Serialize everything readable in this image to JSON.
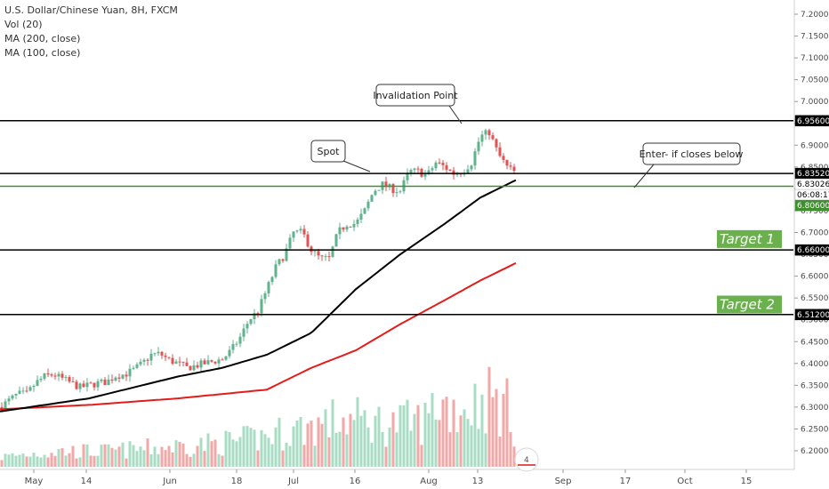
{
  "header": {
    "symbol_line": "U.S. Dollar/Chinese Yuan, 8H, FXCM",
    "indicators": [
      "Vol (20)",
      "MA (200, close)",
      "MA (100, close)"
    ]
  },
  "colors": {
    "up": "#5fb38c",
    "down": "#e35252",
    "vol_up": "#a9dcc4",
    "vol_down": "#f4a7a7",
    "ma200": "#e31c1c",
    "ma100": "#000000",
    "green_line": "#3f8f2e",
    "target_box": "#6ab04c"
  },
  "chart_data": {
    "type": "candlestick",
    "title": "U.S. Dollar/Chinese Yuan, 8H, FXCM",
    "y_axis": {
      "ylim": [
        6.18,
        7.22
      ],
      "ticks": [
        "7.20000",
        "7.15000",
        "7.10000",
        "7.05000",
        "7.00000",
        "6.95000",
        "6.90000",
        "6.85000",
        "6.80000",
        "6.75000",
        "6.70000",
        "6.65000",
        "6.60000",
        "6.55000",
        "6.50000",
        "6.45000",
        "6.40000",
        "6.35000",
        "6.30000",
        "6.25000",
        "6.20000"
      ]
    },
    "x_axis": {
      "ticks": [
        "May",
        "14",
        "Jun",
        "18",
        "Jul",
        "16",
        "Aug",
        "13",
        "Sep",
        "17",
        "Oct",
        "15"
      ]
    },
    "horizontal_lines": [
      {
        "name": "invalidation",
        "value": 6.956,
        "label": "6.95600",
        "color": "#000000"
      },
      {
        "name": "spot",
        "value": 6.8352,
        "label": "6.83520",
        "color": "#000000"
      },
      {
        "name": "entry",
        "value": 6.806,
        "label": "6.80600",
        "color": "#3f8f2e"
      },
      {
        "name": "target-1",
        "value": 6.66,
        "label": "6.66000",
        "color": "#000000"
      },
      {
        "name": "target-2",
        "value": 6.512,
        "label": "6.51200",
        "color": "#000000"
      }
    ],
    "price_tags": [
      {
        "label": "6.95600",
        "value": 6.956,
        "bg": "#000000",
        "fg": "#ffffff"
      },
      {
        "label": "6.83520",
        "value": 6.8352,
        "bg": "#000000",
        "fg": "#ffffff"
      },
      {
        "label": "6.83026",
        "value": 6.83026,
        "bg": "#ffffff",
        "fg": "#000000"
      },
      {
        "label": "06:08:17",
        "value": 6.818,
        "bg": "#ffffff",
        "fg": "#000000"
      },
      {
        "label": "6.80600",
        "value": 6.806,
        "bg": "#3f8f2e",
        "fg": "#ffffff"
      },
      {
        "label": "6.66000",
        "value": 6.66,
        "bg": "#000000",
        "fg": "#ffffff"
      },
      {
        "label": "6.51200",
        "value": 6.512,
        "bg": "#000000",
        "fg": "#ffffff"
      }
    ],
    "annotations": [
      {
        "text": "Invalidation Point"
      },
      {
        "text": "Spot"
      },
      {
        "text": "Enter- if closes below"
      }
    ],
    "targets": [
      {
        "text": "Target 1",
        "value": 6.685
      },
      {
        "text": "Target 2",
        "value": 6.535
      }
    ],
    "price_path": [
      [
        0,
        6.3
      ],
      [
        10,
        6.315
      ],
      [
        20,
        6.33
      ],
      [
        30,
        6.33
      ],
      [
        40,
        6.355
      ],
      [
        50,
        6.37
      ],
      [
        60,
        6.375
      ],
      [
        70,
        6.365
      ],
      [
        80,
        6.355
      ],
      [
        90,
        6.345
      ],
      [
        100,
        6.35
      ],
      [
        110,
        6.355
      ],
      [
        120,
        6.358
      ],
      [
        130,
        6.372
      ],
      [
        140,
        6.375
      ],
      [
        150,
        6.385
      ],
      [
        160,
        6.4
      ],
      [
        170,
        6.42
      ],
      [
        180,
        6.422
      ],
      [
        190,
        6.408
      ],
      [
        200,
        6.4
      ],
      [
        210,
        6.39
      ],
      [
        220,
        6.395
      ],
      [
        230,
        6.4
      ],
      [
        240,
        6.405
      ],
      [
        250,
        6.41
      ],
      [
        260,
        6.43
      ],
      [
        270,
        6.46
      ],
      [
        280,
        6.5
      ],
      [
        290,
        6.52
      ],
      [
        300,
        6.57
      ],
      [
        310,
        6.62
      ],
      [
        320,
        6.65
      ],
      [
        330,
        6.7
      ],
      [
        340,
        6.7
      ],
      [
        350,
        6.66
      ],
      [
        360,
        6.64
      ],
      [
        370,
        6.64
      ],
      [
        380,
        6.7
      ],
      [
        390,
        6.72
      ],
      [
        400,
        6.72
      ],
      [
        410,
        6.75
      ],
      [
        420,
        6.795
      ],
      [
        430,
        6.81
      ],
      [
        440,
        6.8
      ],
      [
        450,
        6.795
      ],
      [
        460,
        6.84
      ],
      [
        470,
        6.84
      ],
      [
        480,
        6.83
      ],
      [
        490,
        6.86
      ],
      [
        500,
        6.85
      ],
      [
        510,
        6.835
      ],
      [
        520,
        6.84
      ],
      [
        530,
        6.86
      ],
      [
        540,
        6.92
      ],
      [
        550,
        6.93
      ],
      [
        560,
        6.88
      ],
      [
        570,
        6.85
      ],
      [
        580,
        6.836
      ]
    ],
    "ma100_path": [
      [
        0,
        6.29
      ],
      [
        100,
        6.32
      ],
      [
        200,
        6.37
      ],
      [
        250,
        6.39
      ],
      [
        300,
        6.42
      ],
      [
        350,
        6.47
      ],
      [
        400,
        6.57
      ],
      [
        450,
        6.65
      ],
      [
        500,
        6.72
      ],
      [
        540,
        6.78
      ],
      [
        580,
        6.82
      ]
    ],
    "ma200_path": [
      [
        0,
        6.295
      ],
      [
        100,
        6.305
      ],
      [
        200,
        6.32
      ],
      [
        250,
        6.33
      ],
      [
        300,
        6.34
      ],
      [
        350,
        6.39
      ],
      [
        400,
        6.43
      ],
      [
        450,
        6.49
      ],
      [
        500,
        6.545
      ],
      [
        540,
        6.59
      ],
      [
        580,
        6.63
      ]
    ],
    "volume_peaks": [
      [
        0,
        0.05
      ],
      [
        60,
        0.08
      ],
      [
        120,
        0.08
      ],
      [
        180,
        0.1
      ],
      [
        240,
        0.12
      ],
      [
        280,
        0.14
      ],
      [
        320,
        0.18
      ],
      [
        360,
        0.22
      ],
      [
        380,
        0.24
      ],
      [
        400,
        0.24
      ],
      [
        440,
        0.22
      ],
      [
        480,
        0.24
      ],
      [
        490,
        0.34
      ],
      [
        510,
        0.3
      ],
      [
        530,
        0.32
      ],
      [
        550,
        0.36
      ],
      [
        570,
        0.3
      ],
      [
        580,
        0.2
      ]
    ]
  },
  "watermark": {
    "text": "4"
  }
}
